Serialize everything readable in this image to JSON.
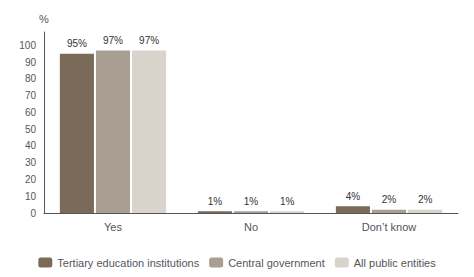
{
  "chart_data": {
    "type": "bar",
    "categories": [
      "Yes",
      "No",
      "Don’t know"
    ],
    "series": [
      {
        "name": "Tertiary education institutions",
        "color": "#7a6a58",
        "values": [
          95,
          1,
          4
        ],
        "value_labels": [
          "95%",
          "1%",
          "4%"
        ]
      },
      {
        "name": "Central government",
        "color": "#a89e92",
        "values": [
          97,
          1,
          2
        ],
        "value_labels": [
          "97%",
          "1%",
          "2%"
        ]
      },
      {
        "name": "All public entities",
        "color": "#d8d3cb",
        "values": [
          97,
          1,
          2
        ],
        "value_labels": [
          "97%",
          "1%",
          "2%"
        ]
      }
    ],
    "ylabel": "%",
    "ylim": [
      0,
      108
    ],
    "yticks": [
      0,
      10,
      20,
      30,
      40,
      50,
      60,
      70,
      80,
      90,
      100
    ],
    "grid": false,
    "legend": "bottom",
    "data_labels": true
  }
}
